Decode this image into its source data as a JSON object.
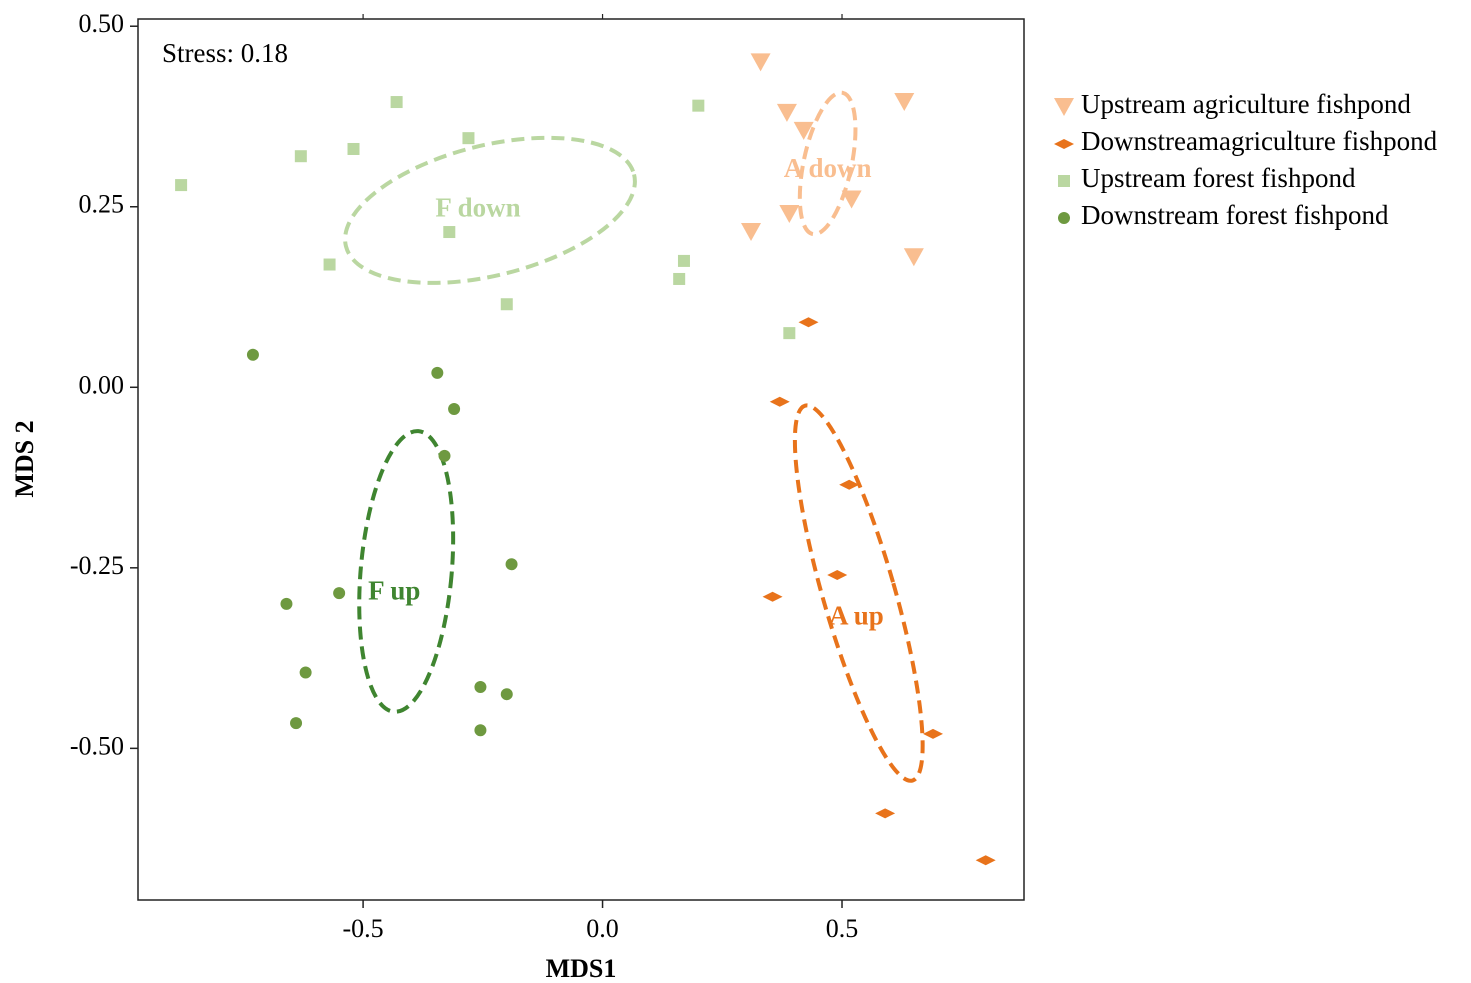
{
  "chart_data": {
    "type": "scatter",
    "xlabel": "MDS1",
    "ylabel": "MDS 2",
    "xlim": [
      -0.97,
      0.88
    ],
    "ylim": [
      -0.71,
      0.51
    ],
    "xticks": [
      -0.5,
      0.0,
      0.5
    ],
    "xtick_labels": [
      "-0.5",
      "0.0",
      "0.5"
    ],
    "yticks": [
      0.5,
      0.25,
      0.0,
      -0.25,
      -0.5
    ],
    "ytick_labels": [
      "0.50",
      "0.25",
      "0.00",
      "-0.25",
      "-0.50"
    ],
    "annotation": "Stress: 0.18",
    "grid": false,
    "legend_position": "right",
    "series": [
      {
        "name": "Upstream agriculture fishpond",
        "marker": "triangle-down",
        "color": "#F9BE90",
        "points": [
          [
            0.33,
            0.45
          ],
          [
            0.385,
            0.38
          ],
          [
            0.42,
            0.355
          ],
          [
            0.63,
            0.395
          ],
          [
            0.39,
            0.24
          ],
          [
            0.31,
            0.215
          ],
          [
            0.52,
            0.26
          ],
          [
            0.65,
            0.18
          ]
        ]
      },
      {
        "name": "Downstreamagriculture fishpond",
        "marker": "diamond",
        "color": "#E8731B",
        "points": [
          [
            0.43,
            0.09
          ],
          [
            0.37,
            -0.02
          ],
          [
            0.515,
            -0.135
          ],
          [
            0.49,
            -0.26
          ],
          [
            0.355,
            -0.29
          ],
          [
            0.69,
            -0.48
          ],
          [
            0.59,
            -0.59
          ],
          [
            0.8,
            -0.655
          ]
        ]
      },
      {
        "name": "Upstream forest fishpond",
        "marker": "square",
        "color": "#BAD7A1",
        "points": [
          [
            -0.88,
            0.28
          ],
          [
            -0.43,
            0.395
          ],
          [
            -0.63,
            0.32
          ],
          [
            -0.52,
            0.33
          ],
          [
            -0.28,
            0.345
          ],
          [
            -0.32,
            0.215
          ],
          [
            -0.57,
            0.17
          ],
          [
            -0.2,
            0.115
          ],
          [
            0.2,
            0.39
          ],
          [
            0.17,
            0.175
          ],
          [
            0.16,
            0.15
          ],
          [
            0.39,
            0.075
          ]
        ]
      },
      {
        "name": "Downstream forest fishpond",
        "marker": "circle",
        "color": "#6E9940",
        "points": [
          [
            -0.73,
            0.045
          ],
          [
            -0.345,
            0.02
          ],
          [
            -0.31,
            -0.03
          ],
          [
            -0.33,
            -0.095
          ],
          [
            -0.19,
            -0.245
          ],
          [
            -0.66,
            -0.3
          ],
          [
            -0.55,
            -0.285
          ],
          [
            -0.62,
            -0.395
          ],
          [
            -0.255,
            -0.415
          ],
          [
            -0.2,
            -0.425
          ],
          [
            -0.64,
            -0.465
          ],
          [
            -0.255,
            -0.475
          ]
        ]
      }
    ],
    "ellipses": [
      {
        "label": "F down",
        "color": "#BAD7A1",
        "cx": -0.235,
        "cy": 0.245,
        "rx": 0.31,
        "ry": 0.09,
        "angle_deg": -14,
        "label_x": -0.26,
        "label_y": 0.245
      },
      {
        "label": "A down",
        "color": "#F9BE90",
        "cx": 0.47,
        "cy": 0.31,
        "rx": 0.05,
        "ry": 0.1,
        "angle_deg": 12,
        "label_x": 0.47,
        "label_y": 0.3
      },
      {
        "label": "F up",
        "color": "#3F8530",
        "cx": -0.41,
        "cy": -0.255,
        "rx": 0.095,
        "ry": 0.195,
        "angle_deg": 5,
        "label_x": -0.435,
        "label_y": -0.285
      },
      {
        "label": "A up",
        "color": "#E8731B",
        "cx": 0.535,
        "cy": -0.285,
        "rx": 0.075,
        "ry": 0.27,
        "angle_deg": -16,
        "label_x": 0.53,
        "label_y": -0.32
      }
    ]
  }
}
